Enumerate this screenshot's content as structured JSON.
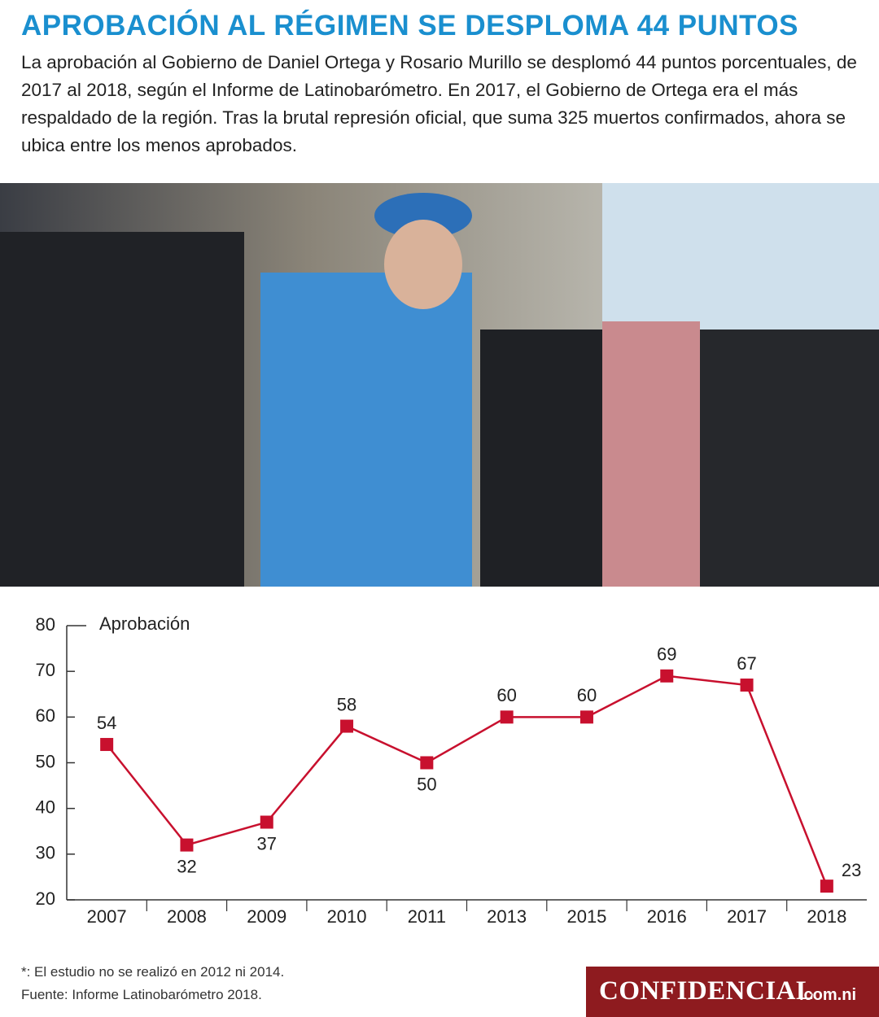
{
  "header": {
    "title": "APROBACIÓN AL RÉGIMEN SE DESPLOMA 44 PUNTOS",
    "lead": "La aprobación al Gobierno de Daniel Ortega y Rosario Murillo se desplomó 44 puntos porcentuales, de 2017 al 2018, según el Informe de Latinobarómetro. En 2017, el Gobierno de Ortega era el más respaldado de la región. Tras la brutal represión oficial, que suma 325 muertos confirmados, ahora se ubica entre los menos aprobados."
  },
  "chart_data": {
    "type": "line",
    "y_label": "Aprobación",
    "categories": [
      "2007",
      "2008",
      "2009",
      "2010",
      "2011",
      "2013",
      "2015",
      "2016",
      "2017",
      "2018"
    ],
    "series": [
      {
        "name": "Aprobación",
        "color": "#c8102e",
        "values": [
          54,
          32,
          37,
          58,
          50,
          60,
          60,
          69,
          67,
          23
        ]
      }
    ],
    "ylim": [
      20,
      80
    ],
    "yticks": [
      20,
      30,
      40,
      50,
      60,
      70,
      80
    ],
    "data_labels": true
  },
  "footnotes": [
    "*: El estudio no se realizó en 2012 ni 2014.",
    "Fuente: Informe Latinobarómetro 2018."
  ],
  "logo": {
    "name": "CONFIDENCIAL",
    "domain": ".com.ni"
  }
}
